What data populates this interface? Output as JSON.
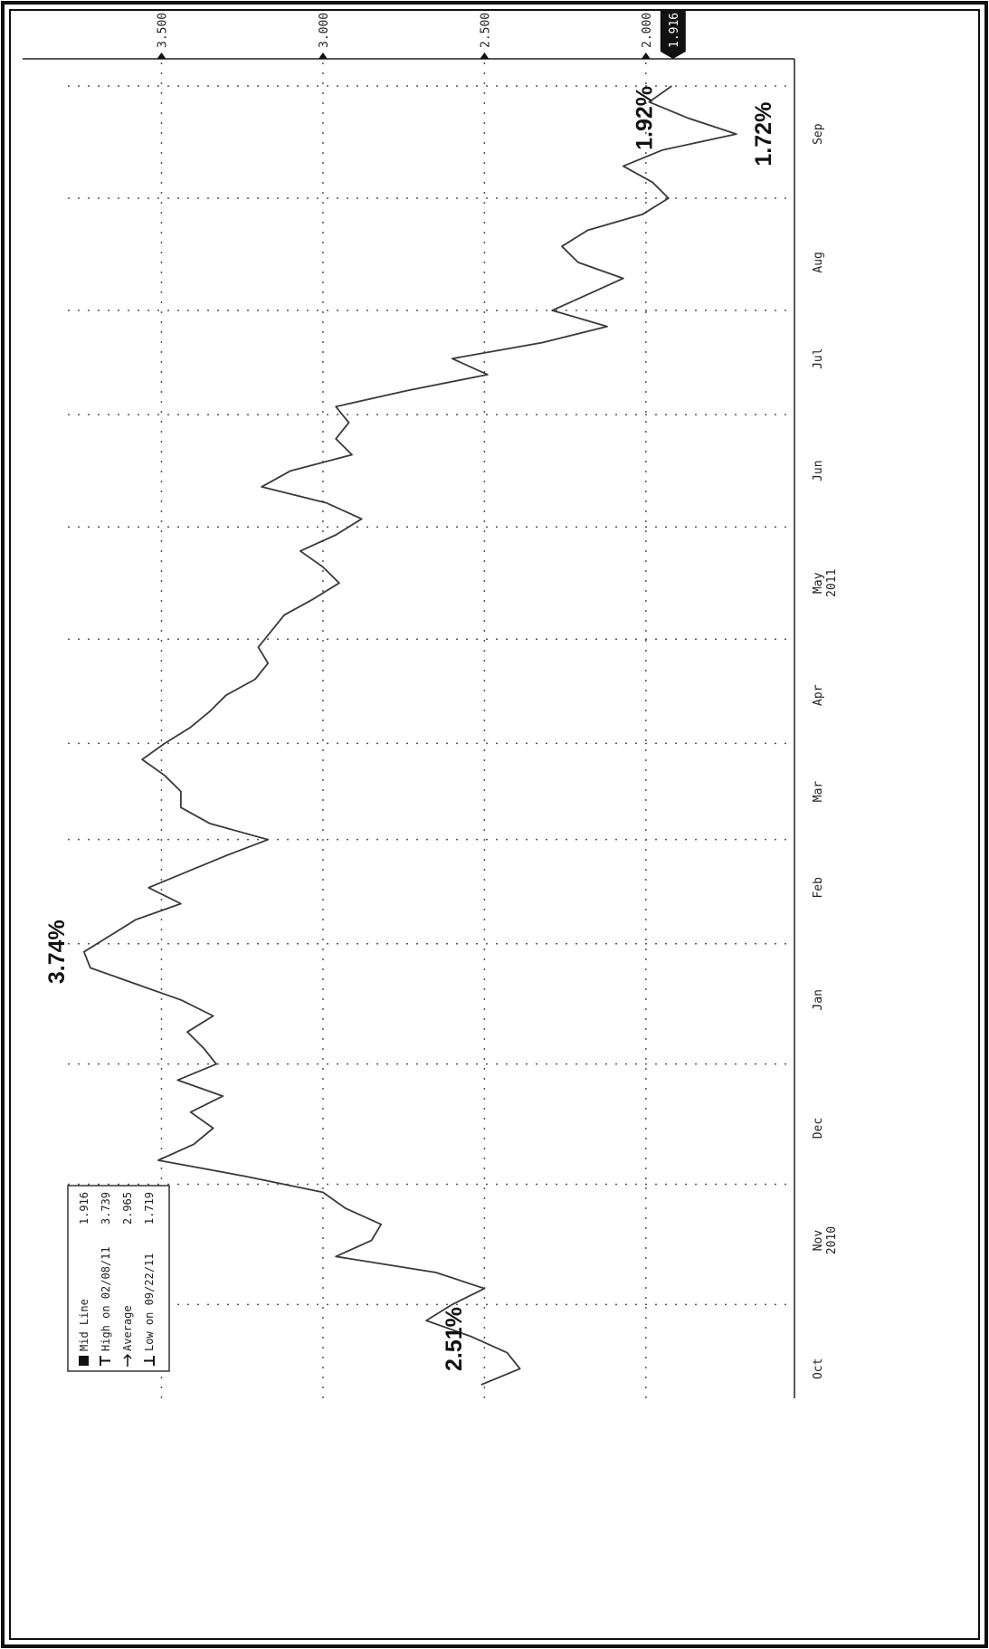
{
  "chart_data": {
    "type": "line",
    "categories": [
      null,
      "Oct",
      null,
      null,
      null,
      null,
      null,
      null,
      null,
      "Nov",
      null,
      null,
      null,
      null,
      null,
      null,
      "Dec",
      null,
      null,
      null,
      null,
      null,
      null,
      null,
      "Jan",
      null,
      null,
      null,
      null,
      null,
      null,
      "Feb",
      null,
      null,
      null,
      null,
      null,
      "Mar",
      null,
      null,
      null,
      null,
      null,
      "Apr",
      null,
      null,
      null,
      null,
      null,
      null,
      "May",
      null,
      null,
      null,
      null,
      null,
      null,
      "Jun",
      null,
      null,
      null,
      null,
      null,
      null,
      "Jul",
      null,
      null,
      null,
      null,
      null,
      "Aug",
      null,
      null,
      null,
      null,
      null,
      null,
      null,
      "Sep",
      null,
      null,
      null
    ],
    "category_years": [
      null,
      null,
      null,
      null,
      null,
      null,
      null,
      null,
      null,
      "2010",
      null,
      null,
      null,
      null,
      null,
      null,
      null,
      null,
      null,
      null,
      null,
      null,
      null,
      null,
      null,
      null,
      null,
      null,
      null,
      null,
      null,
      null,
      null,
      null,
      null,
      null,
      null,
      null,
      null,
      null,
      null,
      null,
      null,
      null,
      null,
      null,
      null,
      null,
      null,
      null,
      "2011",
      null,
      null,
      null,
      null,
      null,
      null,
      null,
      null,
      null,
      null,
      null,
      null,
      null,
      null,
      null,
      null,
      null,
      null,
      null,
      null,
      null,
      null,
      null,
      null,
      null,
      null,
      null,
      null,
      null,
      null,
      null
    ],
    "values": [
      2.51,
      2.39,
      2.43,
      2.54,
      2.68,
      2.6,
      2.5,
      2.65,
      2.96,
      2.85,
      2.82,
      2.93,
      3.0,
      3.24,
      3.51,
      3.4,
      3.34,
      3.41,
      3.31,
      3.45,
      3.33,
      3.37,
      3.42,
      3.34,
      3.44,
      3.58,
      3.72,
      3.74,
      3.66,
      3.58,
      3.44,
      3.54,
      3.42,
      3.3,
      3.17,
      3.35,
      3.44,
      3.44,
      3.49,
      3.56,
      3.49,
      3.41,
      3.35,
      3.3,
      3.21,
      3.17,
      3.2,
      3.16,
      3.12,
      3.03,
      2.95,
      3.0,
      3.07,
      2.96,
      2.88,
      2.99,
      3.19,
      3.1,
      2.91,
      2.96,
      2.92,
      2.96,
      2.74,
      2.49,
      2.6,
      2.32,
      2.12,
      2.29,
      2.18,
      2.07,
      2.21,
      2.26,
      2.18,
      2.01,
      1.93,
      1.98,
      2.07,
      1.95,
      1.72,
      1.87,
      1.99,
      1.92
    ],
    "value_labels": [
      "2.51%",
      null,
      null,
      null,
      null,
      null,
      null,
      null,
      null,
      null,
      null,
      null,
      null,
      null,
      null,
      null,
      null,
      null,
      null,
      null,
      null,
      null,
      null,
      null,
      null,
      null,
      null,
      "3.74%",
      null,
      null,
      null,
      null,
      null,
      null,
      null,
      null,
      null,
      null,
      null,
      null,
      null,
      null,
      null,
      null,
      null,
      null,
      null,
      null,
      null,
      null,
      null,
      null,
      null,
      null,
      null,
      null,
      null,
      null,
      null,
      null,
      null,
      null,
      null,
      null,
      null,
      null,
      null,
      null,
      null,
      null,
      null,
      null,
      null,
      null,
      null,
      null,
      null,
      null,
      "1.72%",
      null,
      null,
      "1.92%"
    ],
    "color": "#3a3a3a",
    "ylim": [
      1.54,
      3.93
    ],
    "yticks": [
      {
        "value": 2,
        "label": "2.000"
      },
      {
        "value": 2.5,
        "label": "2.500"
      },
      {
        "value": 3,
        "label": "3.000"
      },
      {
        "value": 3.5,
        "label": "3.500"
      }
    ],
    "grid": true,
    "legend_position": "upper left",
    "legend": [
      {
        "name": "Mid Line",
        "value": 1.916
      },
      {
        "name": "High on 02/08/11",
        "value": 3.739
      },
      {
        "name": "Average",
        "value": 2.965
      },
      {
        "name": "Low on 09/22/11",
        "value": 1.719
      }
    ]
  }
}
